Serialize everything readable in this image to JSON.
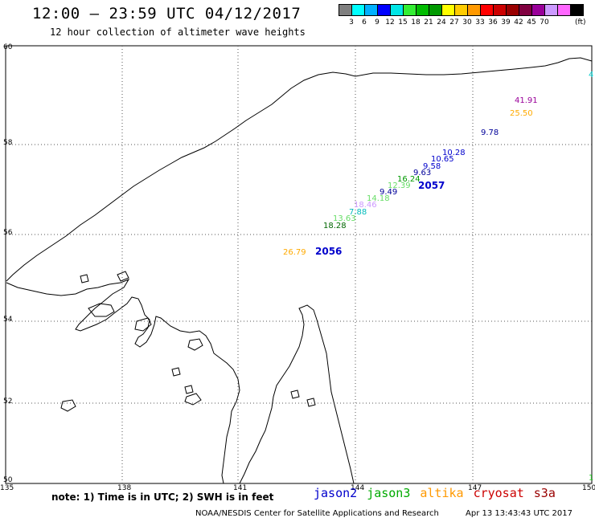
{
  "header": {
    "title": "12:00 – 23:59 UTC 04/12/2017",
    "subtitle": "12 hour collection of altimeter wave heights"
  },
  "legend": {
    "colors": [
      "#7f7f7f",
      "#00ffff",
      "#00b0ff",
      "#0000ff",
      "#00e6e6",
      "#33ee33",
      "#00bb00",
      "#009900",
      "#ffff00",
      "#ffcc00",
      "#ff9900",
      "#ff0000",
      "#cc0000",
      "#990000",
      "#800040",
      "#990099",
      "#cc99ff",
      "#ff66ff",
      "#000000"
    ],
    "labels": [
      "3",
      "6",
      "9",
      "12",
      "15",
      "18",
      "21",
      "24",
      "27",
      "30",
      "33",
      "36",
      "39",
      "42",
      "45",
      "70"
    ],
    "unit": "(ft)"
  },
  "map": {
    "lat_labels": [
      "60",
      "58",
      "56",
      "54",
      "52",
      "50"
    ],
    "lon_labels": [
      "135",
      "138",
      "141",
      "144",
      "147",
      "150"
    ]
  },
  "observations": [
    {
      "text": "4",
      "color": "#00cccc"
    },
    {
      "text": "41.91",
      "color": "#990099"
    },
    {
      "text": "25.50",
      "color": "#ffaa00"
    },
    {
      "text": "9.78",
      "color": "#000099"
    },
    {
      "text": "10.28",
      "color": "#0000cc"
    },
    {
      "text": "10.65",
      "color": "#0000cc"
    },
    {
      "text": "9.58",
      "color": "#0000cc"
    },
    {
      "text": "9.63",
      "color": "#000099"
    },
    {
      "text": "16.24",
      "color": "#009900"
    },
    {
      "text": "12.39",
      "color": "#66dd66"
    },
    {
      "text": "9.49",
      "color": "#000099"
    },
    {
      "text": "14.18",
      "color": "#66dd66"
    },
    {
      "text": "18.46",
      "color": "#cc99ff"
    },
    {
      "text": "7.88",
      "color": "#00bbbb"
    },
    {
      "text": "13.63",
      "color": "#66dd66"
    },
    {
      "text": "18.28",
      "color": "#006600"
    },
    {
      "text": "26.79",
      "color": "#ffaa00"
    },
    {
      "text": "1",
      "color": "#33cc33"
    }
  ],
  "pass_labels": [
    {
      "text": "2057",
      "color": "#0000cc"
    },
    {
      "text": "2056",
      "color": "#0000cc"
    }
  ],
  "footer": {
    "note": "note: 1) Time is in UTC; 2) SWH is in feet",
    "satellites": [
      {
        "name": "jason2",
        "color": "#0000cc"
      },
      {
        "name": "jason3",
        "color": "#00aa00"
      },
      {
        "name": "altika",
        "color": "#ff9900"
      },
      {
        "name": "cryosat",
        "color": "#cc0000"
      },
      {
        "name": "s3a",
        "color": "#990000"
      }
    ],
    "credit": "NOAA/NESDIS Center for Satellite Applications and Research",
    "timestamp": "Apr 13 13:43:43 UTC 2017"
  }
}
